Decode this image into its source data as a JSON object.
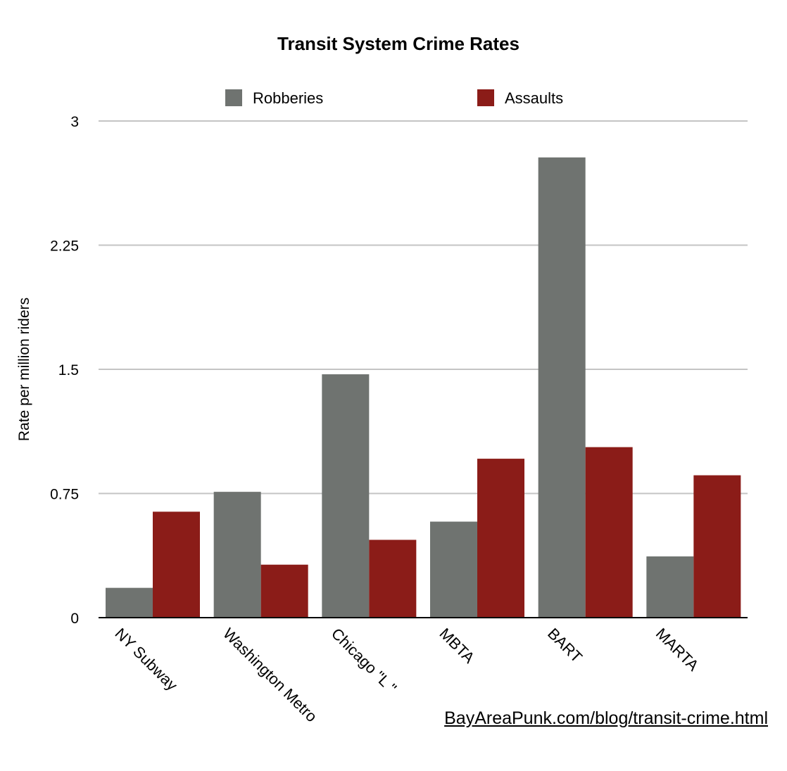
{
  "chart_data": {
    "type": "bar",
    "title": "Transit System Crime Rates",
    "ylabel": "Rate per million riders",
    "xlabel": "",
    "ylim": [
      0,
      3
    ],
    "yticks": [
      0,
      0.75,
      1.5,
      2.25,
      3
    ],
    "ytick_labels": [
      "0",
      "0.75",
      "1.5",
      "2.25",
      "3"
    ],
    "grid": true,
    "legend_position": "top",
    "categories": [
      "NY Subway",
      "Washington Metro",
      "Chicago \"L \"",
      "MBTA",
      "BART",
      "MARTA"
    ],
    "series": [
      {
        "name": "Robberies",
        "color": "#6f7370",
        "values": [
          0.18,
          0.76,
          1.47,
          0.58,
          2.78,
          0.37
        ]
      },
      {
        "name": "Assaults",
        "color": "#8b1c18",
        "values": [
          0.64,
          0.32,
          0.47,
          0.96,
          1.03,
          0.86
        ]
      }
    ]
  },
  "source": {
    "link_text": "BayAreaPunk.com/blog/transit-crime.html"
  }
}
